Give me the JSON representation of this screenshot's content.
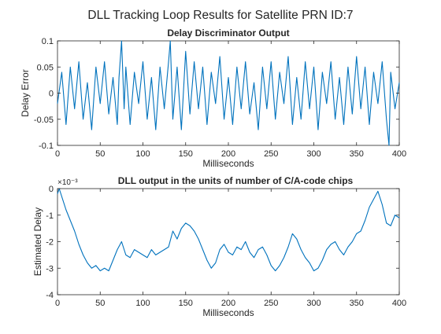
{
  "figure": {
    "title": "DLL Tracking Loop Results for Satellite PRN ID:7"
  },
  "chart_data": [
    {
      "type": "line",
      "title": "Delay Discriminator Output",
      "xlabel": "Milliseconds",
      "ylabel": "Delay Error",
      "xlim": [
        0,
        400
      ],
      "ylim": [
        -0.1,
        0.1
      ],
      "xticks": [
        "0",
        "50",
        "100",
        "150",
        "200",
        "250",
        "300",
        "350",
        "400"
      ],
      "yticks": [
        "0.1",
        "0.05",
        "0",
        "-0.05",
        "-0.1"
      ],
      "grid": false,
      "color": "#0072BD",
      "series": [
        {
          "x": [
            0,
            5,
            10,
            15,
            20,
            25,
            30,
            35,
            40,
            45,
            50,
            55,
            60,
            65,
            70,
            72,
            75,
            78,
            80,
            85,
            90,
            95,
            100,
            105,
            110,
            115,
            120,
            125,
            130,
            132,
            135,
            140,
            145,
            150,
            155,
            160,
            165,
            170,
            175,
            180,
            185,
            190,
            195,
            200,
            205,
            210,
            215,
            220,
            225,
            230,
            235,
            240,
            245,
            250,
            255,
            260,
            265,
            270,
            275,
            280,
            285,
            290,
            295,
            300,
            305,
            310,
            315,
            320,
            325,
            330,
            335,
            340,
            345,
            350,
            355,
            360,
            365,
            370,
            375,
            380,
            385,
            388,
            390,
            395,
            400
          ],
          "y": [
            -0.02,
            0.04,
            -0.06,
            0.05,
            -0.03,
            0.06,
            -0.05,
            0.02,
            -0.07,
            0.05,
            -0.02,
            0.06,
            -0.04,
            0.03,
            -0.06,
            0.03,
            0.1,
            -0.03,
            0.05,
            -0.06,
            0.04,
            -0.02,
            0.06,
            -0.05,
            0.03,
            -0.07,
            0.05,
            -0.03,
            0.06,
            0.1,
            -0.05,
            0.05,
            -0.07,
            0.08,
            -0.04,
            0.06,
            -0.03,
            0.05,
            -0.06,
            0.04,
            -0.02,
            0.07,
            -0.05,
            0.03,
            -0.06,
            0.05,
            -0.03,
            0.06,
            -0.04,
            0.02,
            -0.07,
            0.05,
            -0.03,
            0.06,
            -0.05,
            0.04,
            -0.02,
            0.07,
            -0.06,
            0.03,
            -0.05,
            0.06,
            -0.03,
            0.05,
            -0.07,
            0.04,
            -0.02,
            0.06,
            -0.05,
            0.03,
            -0.06,
            0.05,
            -0.04,
            0.07,
            -0.03,
            0.05,
            -0.06,
            0.04,
            -0.02,
            0.06,
            -0.05,
            -0.1,
            0.04,
            -0.03,
            0.02
          ]
        }
      ]
    },
    {
      "type": "line",
      "title": "DLL output in the units of number of C/A-code chips",
      "xlabel": "Milliseconds",
      "ylabel": "Estimated Delay",
      "y_exponent": "×10⁻³",
      "xlim": [
        0,
        400
      ],
      "ylim": [
        -4,
        0
      ],
      "xticks": [
        "0",
        "50",
        "100",
        "150",
        "200",
        "250",
        "300",
        "350",
        "400"
      ],
      "yticks": [
        "0",
        "-1",
        "-2",
        "-3",
        "-4"
      ],
      "grid": false,
      "color": "#0072BD",
      "series": [
        {
          "x": [
            0,
            2,
            5,
            10,
            15,
            20,
            25,
            30,
            35,
            40,
            45,
            50,
            55,
            60,
            65,
            70,
            75,
            80,
            85,
            90,
            95,
            100,
            105,
            110,
            115,
            120,
            125,
            130,
            135,
            140,
            145,
            150,
            155,
            160,
            165,
            170,
            175,
            180,
            185,
            190,
            195,
            200,
            205,
            210,
            215,
            220,
            225,
            230,
            235,
            240,
            245,
            250,
            255,
            260,
            265,
            270,
            275,
            280,
            285,
            290,
            295,
            300,
            305,
            310,
            315,
            320,
            325,
            330,
            335,
            340,
            345,
            350,
            355,
            360,
            365,
            370,
            375,
            380,
            385,
            390,
            395,
            400
          ],
          "y": [
            -0.2,
            0,
            -0.3,
            -0.8,
            -1.2,
            -1.6,
            -2.1,
            -2.5,
            -2.8,
            -3.0,
            -2.9,
            -3.1,
            -3.0,
            -3.1,
            -2.7,
            -2.3,
            -2.0,
            -2.5,
            -2.6,
            -2.3,
            -2.4,
            -2.5,
            -2.6,
            -2.3,
            -2.5,
            -2.4,
            -2.3,
            -2.2,
            -1.6,
            -1.9,
            -1.5,
            -1.3,
            -1.4,
            -1.6,
            -1.9,
            -2.3,
            -2.7,
            -3.0,
            -2.8,
            -2.3,
            -2.1,
            -2.4,
            -2.5,
            -2.2,
            -2.3,
            -2.0,
            -2.4,
            -2.6,
            -2.3,
            -2.2,
            -2.5,
            -2.9,
            -3.1,
            -2.9,
            -2.6,
            -2.2,
            -1.7,
            -1.9,
            -2.3,
            -2.6,
            -2.8,
            -3.1,
            -3.0,
            -2.7,
            -2.3,
            -2.1,
            -2.0,
            -2.3,
            -2.5,
            -2.2,
            -2.0,
            -1.7,
            -1.6,
            -1.2,
            -0.7,
            -0.4,
            -0.1,
            -0.6,
            -1.3,
            -1.4,
            -1.0,
            -1.1
          ]
        }
      ]
    }
  ]
}
